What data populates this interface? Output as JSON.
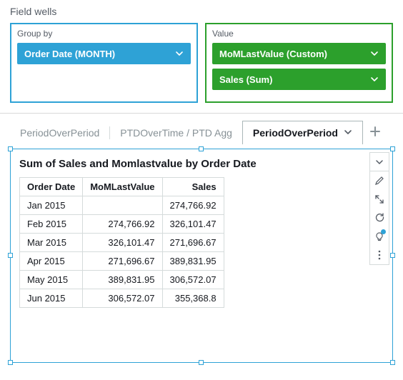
{
  "colors": {
    "blue": "#2ea2d6",
    "green": "#2ca02c",
    "border": "#d5dbdb",
    "text_muted": "#545b64"
  },
  "fieldWells": {
    "label": "Field wells",
    "groupBy": {
      "title": "Group by",
      "pills": [
        {
          "label": "Order Date (MONTH)"
        }
      ]
    },
    "value": {
      "title": "Value",
      "pills": [
        {
          "label": "MoMLastValue (Custom)"
        },
        {
          "label": "Sales (Sum)"
        }
      ]
    }
  },
  "tabs": {
    "items": [
      {
        "label": "PeriodOverPeriod",
        "active": false
      },
      {
        "label": "PTDOverTime / PTD Agg",
        "active": false
      },
      {
        "label": "PeriodOverPeriod",
        "active": true
      }
    ]
  },
  "visual": {
    "title": "Sum of Sales and Momlastvalue by Order Date",
    "table": {
      "columns": [
        "Order Date",
        "MoMLastValue",
        "Sales"
      ],
      "alignment": [
        "left",
        "right",
        "right"
      ],
      "rows": [
        [
          "Jan 2015",
          "",
          "274,766.92"
        ],
        [
          "Feb 2015",
          "274,766.92",
          "326,101.47"
        ],
        [
          "Mar 2015",
          "326,101.47",
          "271,696.67"
        ],
        [
          "Apr 2015",
          "271,696.67",
          "389,831.95"
        ],
        [
          "May 2015",
          "389,831.95",
          "306,572.07"
        ],
        [
          "Jun 2015",
          "306,572.07",
          "355,368.8"
        ]
      ]
    }
  }
}
